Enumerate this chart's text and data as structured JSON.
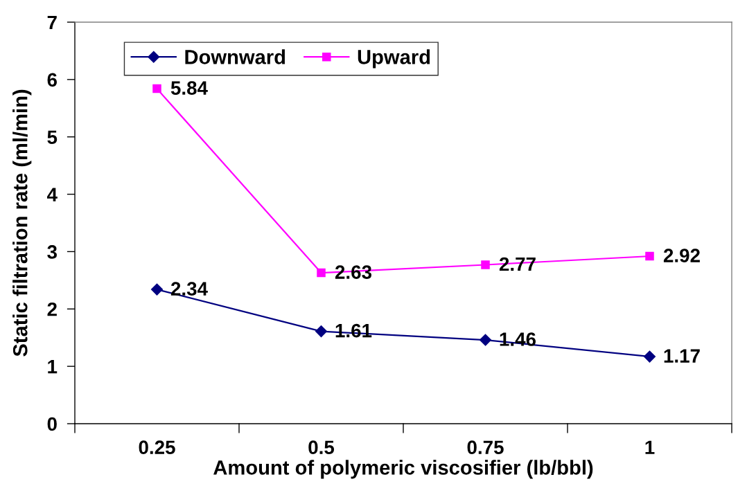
{
  "chart_data": {
    "type": "line",
    "xlabel": "Amount of polymeric viscosifier (lb/bbl)",
    "ylabel": "Static filtration rate (ml/min)",
    "categories": [
      "0.25",
      "0.5",
      "0.75",
      "1"
    ],
    "series": [
      {
        "name": "Downward",
        "color": "#000080",
        "marker": "diamond",
        "values": [
          2.34,
          1.61,
          1.46,
          1.17
        ]
      },
      {
        "name": "Upward",
        "color": "#ff00ff",
        "marker": "square",
        "values": [
          5.84,
          2.63,
          2.77,
          2.92
        ]
      }
    ],
    "ylim": [
      0,
      7
    ],
    "yticks": [
      0,
      1,
      2,
      3,
      4,
      5,
      6,
      7
    ],
    "grid": false,
    "legend": "top left",
    "line_style": "solid",
    "data_labels": true
  }
}
